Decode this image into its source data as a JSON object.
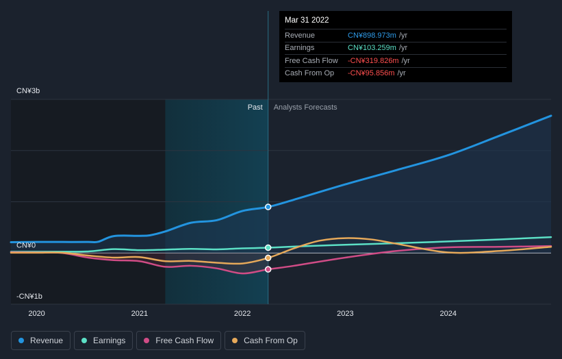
{
  "colors": {
    "revenue": "#2394df",
    "earnings": "#5ce0c6",
    "free_cash_flow": "#d04c86",
    "cash_from_op": "#e6a95a",
    "negative": "#ff4f4f",
    "background": "#1b222d"
  },
  "tooltip": {
    "date": "Mar 31 2022",
    "rows": [
      {
        "label": "Revenue",
        "value": "CN¥898.973m",
        "unit": "/yr",
        "color": "#2f9be8"
      },
      {
        "label": "Earnings",
        "value": "CN¥103.259m",
        "unit": "/yr",
        "color": "#5ce0c6"
      },
      {
        "label": "Free Cash Flow",
        "value": "-CN¥319.826m",
        "unit": "/yr",
        "color": "#ff4f4f"
      },
      {
        "label": "Cash From Op",
        "value": "-CN¥95.856m",
        "unit": "/yr",
        "color": "#ff4f4f"
      }
    ]
  },
  "legend": [
    {
      "label": "Revenue",
      "color": "#2394df"
    },
    {
      "label": "Earnings",
      "color": "#5ce0c6"
    },
    {
      "label": "Free Cash Flow",
      "color": "#d04c86"
    },
    {
      "label": "Cash From Op",
      "color": "#e6a95a"
    }
  ],
  "chart_data": {
    "type": "line",
    "y_tick_labels": [
      {
        "label": "CN¥3b",
        "value": 3000
      },
      {
        "label": "CN¥0",
        "value": 0
      },
      {
        "label": "-CN¥1b",
        "value": -1000
      }
    ],
    "ylim": [
      -1000,
      3000
    ],
    "xlim": [
      2019.75,
      2025.0
    ],
    "x_ticks": [
      {
        "label": "2020",
        "value": 2020
      },
      {
        "label": "2021",
        "value": 2021
      },
      {
        "label": "2022",
        "value": 2022
      },
      {
        "label": "2023",
        "value": 2023
      },
      {
        "label": "2024",
        "value": 2024
      }
    ],
    "past_label": "Past",
    "forecast_label": "Analysts Forecasts",
    "divider_x": 2022.25,
    "highlight_start_x": 2021.25,
    "grid": true,
    "series": [
      {
        "name": "Revenue",
        "color": "#2394df",
        "points": [
          [
            2019.75,
            210
          ],
          [
            2020.0,
            215
          ],
          [
            2020.25,
            215
          ],
          [
            2020.5,
            215
          ],
          [
            2020.6,
            220
          ],
          [
            2020.75,
            330
          ],
          [
            2021.0,
            335
          ],
          [
            2021.1,
            345
          ],
          [
            2021.25,
            420
          ],
          [
            2021.5,
            590
          ],
          [
            2021.75,
            640
          ],
          [
            2022.0,
            820
          ],
          [
            2022.25,
            899
          ],
          [
            2022.5,
            1040
          ],
          [
            2023.0,
            1340
          ],
          [
            2023.5,
            1620
          ],
          [
            2024.0,
            1910
          ],
          [
            2024.5,
            2290
          ],
          [
            2025.0,
            2680
          ]
        ]
      },
      {
        "name": "Earnings",
        "color": "#5ce0c6",
        "points": [
          [
            2019.75,
            25
          ],
          [
            2020.0,
            25
          ],
          [
            2020.25,
            25
          ],
          [
            2020.5,
            30
          ],
          [
            2020.75,
            75
          ],
          [
            2021.0,
            55
          ],
          [
            2021.25,
            65
          ],
          [
            2021.5,
            80
          ],
          [
            2021.75,
            70
          ],
          [
            2022.0,
            90
          ],
          [
            2022.25,
            103
          ],
          [
            2022.5,
            125
          ],
          [
            2023.0,
            160
          ],
          [
            2023.5,
            190
          ],
          [
            2024.0,
            225
          ],
          [
            2024.5,
            265
          ],
          [
            2025.0,
            310
          ]
        ]
      },
      {
        "name": "Free Cash Flow",
        "color": "#d04c86",
        "points": [
          [
            2019.75,
            15
          ],
          [
            2020.0,
            10
          ],
          [
            2020.25,
            0
          ],
          [
            2020.5,
            -90
          ],
          [
            2020.75,
            -140
          ],
          [
            2021.0,
            -160
          ],
          [
            2021.25,
            -270
          ],
          [
            2021.5,
            -250
          ],
          [
            2021.75,
            -300
          ],
          [
            2022.0,
            -400
          ],
          [
            2022.25,
            -320
          ],
          [
            2022.5,
            -250
          ],
          [
            2023.0,
            -90
          ],
          [
            2023.5,
            40
          ],
          [
            2024.0,
            110
          ],
          [
            2024.5,
            120
          ],
          [
            2025.0,
            135
          ]
        ]
      },
      {
        "name": "Cash From Op",
        "color": "#e6a95a",
        "points": [
          [
            2019.75,
            5
          ],
          [
            2020.0,
            5
          ],
          [
            2020.25,
            5
          ],
          [
            2020.5,
            -50
          ],
          [
            2020.75,
            -90
          ],
          [
            2021.0,
            -80
          ],
          [
            2021.25,
            -160
          ],
          [
            2021.5,
            -155
          ],
          [
            2021.75,
            -190
          ],
          [
            2022.0,
            -205
          ],
          [
            2022.25,
            -96
          ],
          [
            2022.5,
            90
          ],
          [
            2022.75,
            240
          ],
          [
            2023.0,
            290
          ],
          [
            2023.25,
            265
          ],
          [
            2023.5,
            180
          ],
          [
            2024.0,
            10
          ],
          [
            2024.5,
            40
          ],
          [
            2025.0,
            120
          ]
        ]
      }
    ]
  }
}
